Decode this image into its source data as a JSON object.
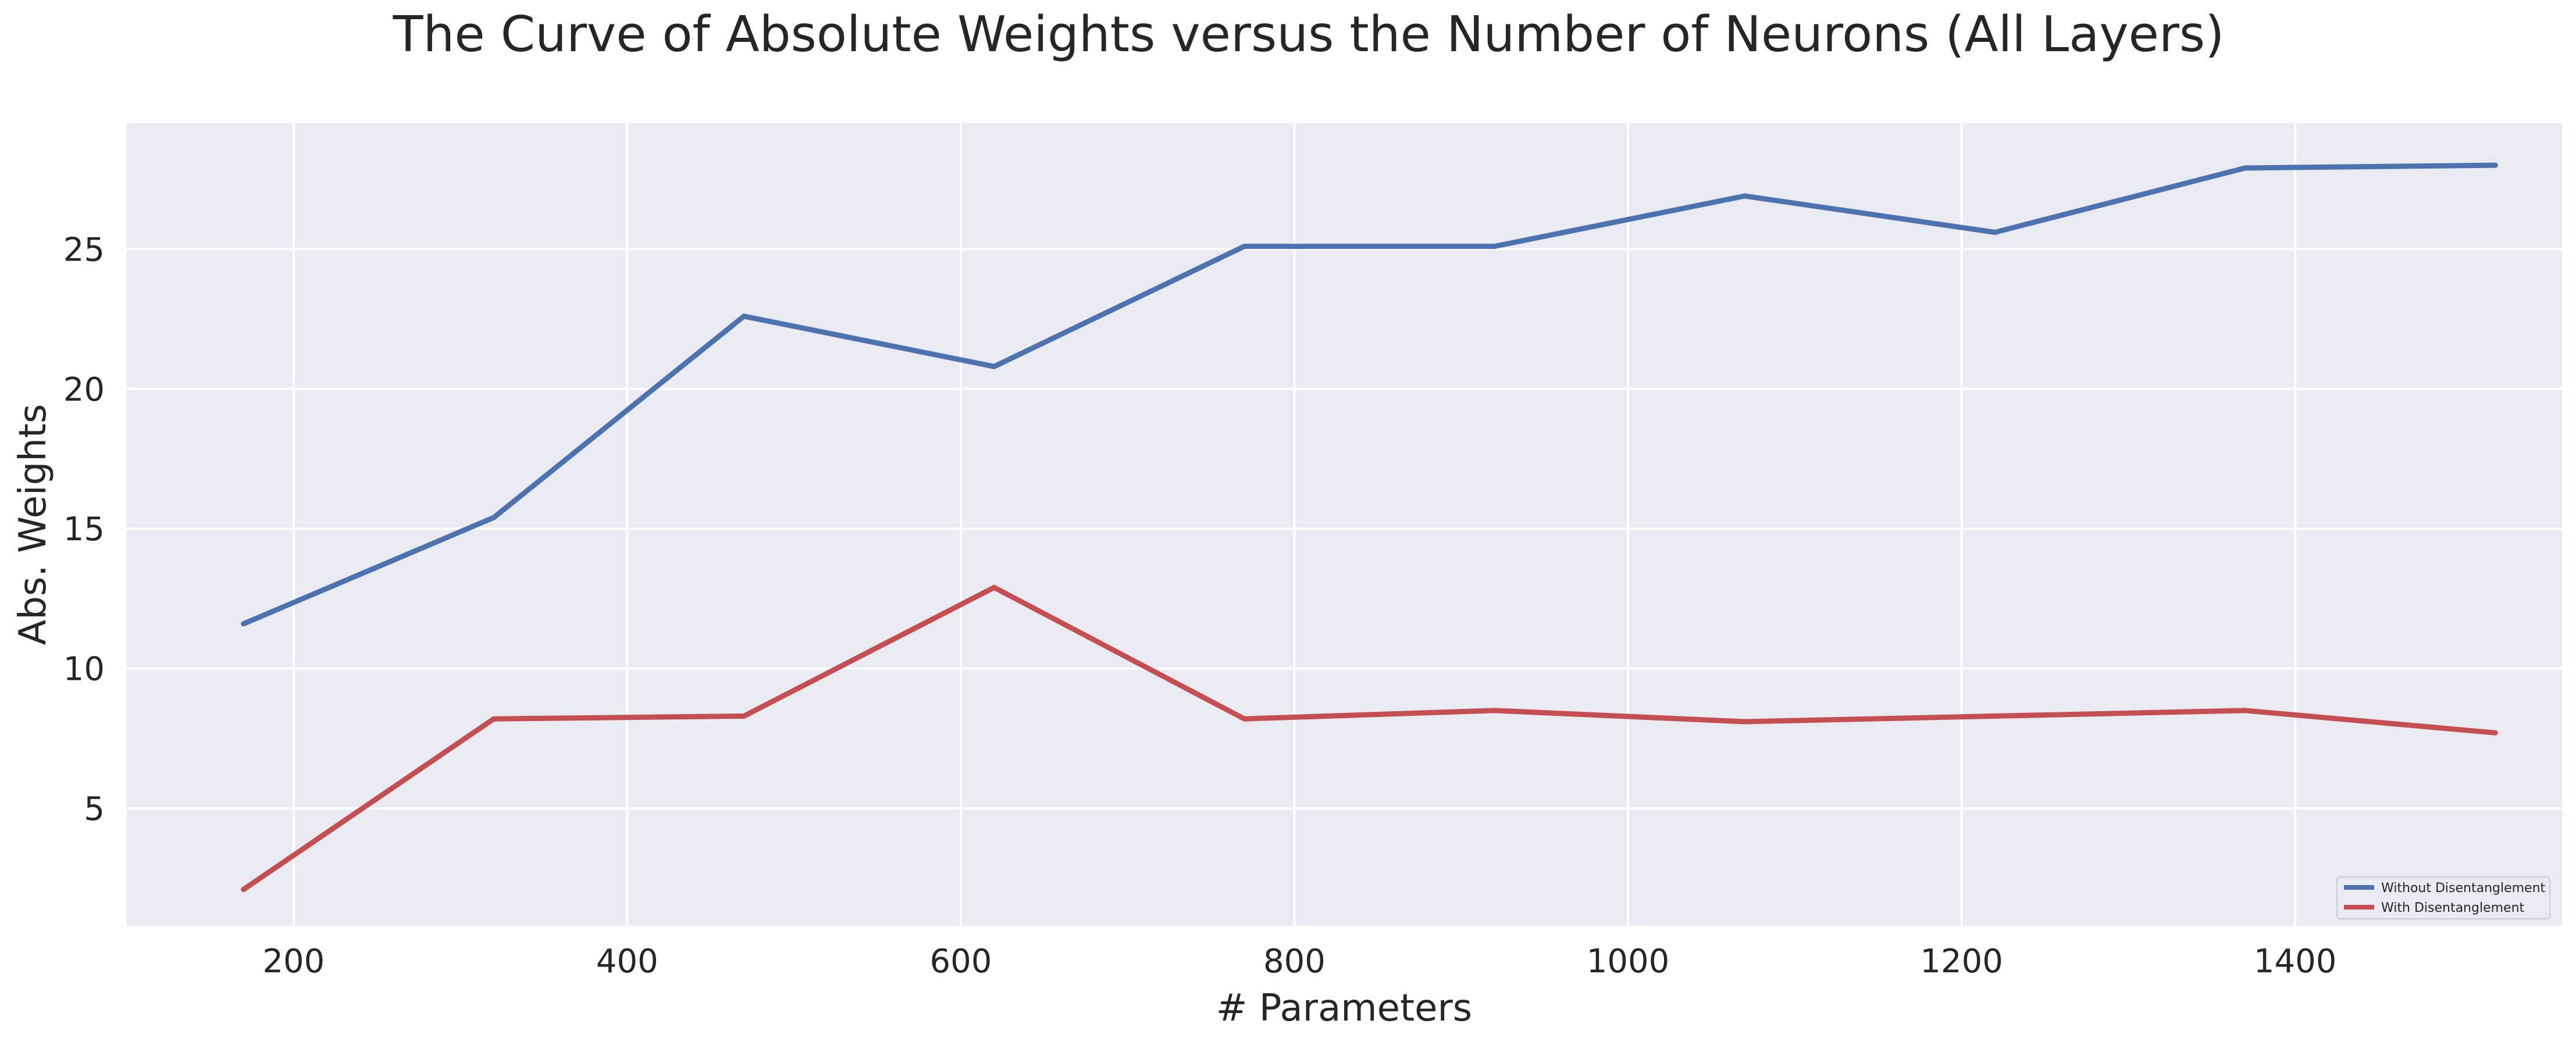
{
  "chart_data": {
    "type": "line",
    "title": "The Curve of Absolute Weights versus the Number of Neurons (All Layers)",
    "xlabel": "# Parameters",
    "ylabel": "Abs. Weights",
    "xlim": [
      100,
      1560
    ],
    "ylim": [
      0.8,
      29.5
    ],
    "x_ticks": [
      200,
      400,
      600,
      800,
      1000,
      1200,
      1400
    ],
    "y_ticks": [
      5,
      10,
      15,
      20,
      25
    ],
    "grid": true,
    "legend_position": "lower right",
    "x": [
      170,
      320,
      470,
      620,
      770,
      920,
      1070,
      1220,
      1370,
      1520
    ],
    "series": [
      {
        "name": "Without Disentanglement",
        "color": "#4c72b0",
        "values": [
          11.6,
          15.4,
          22.6,
          20.8,
          25.1,
          25.1,
          26.9,
          25.6,
          27.9,
          28.0
        ]
      },
      {
        "name": "With Disentanglement",
        "color": "#c44e52",
        "values": [
          2.1,
          8.2,
          8.3,
          12.9,
          8.2,
          8.5,
          8.1,
          8.3,
          8.5,
          7.7
        ]
      }
    ]
  },
  "style": {
    "plot_background": "#eaeaf2",
    "grid_color": "#ffffff"
  }
}
